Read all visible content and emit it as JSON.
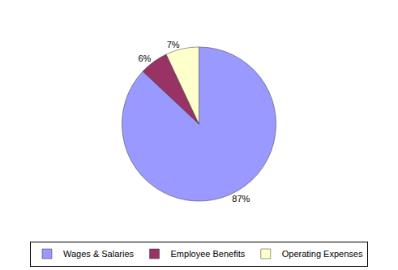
{
  "chart_data": {
    "type": "pie",
    "categories": [
      "Wages & Salaries",
      "Employee Benefits",
      "Operating Expenses"
    ],
    "values": [
      87,
      6,
      7
    ],
    "value_labels": [
      "87%",
      "6%",
      "7%"
    ],
    "colors": [
      "#9999ff",
      "#993366",
      "#ffffcc"
    ],
    "data_labels": true,
    "legend": "bottom"
  }
}
